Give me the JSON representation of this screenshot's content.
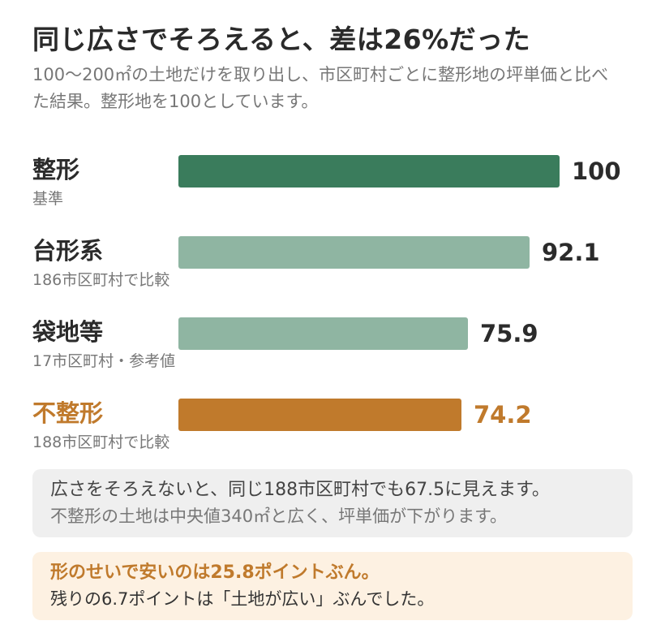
{
  "header": {
    "title": "同じ広さでそろえると、差は26%だった",
    "subtitle": "100〜200㎡の土地だけを取り出し、市区町村ごとに整形地の坪単価と比べた結果。整形地を100としています。"
  },
  "colors": {
    "reference": "#3a7c5c",
    "comparison": "#8fb5a2",
    "highlight": "#c07a2c",
    "text": "#2b2b2b",
    "muted": "#777777",
    "box_gray": "#efefef",
    "box_cream": "#fdf1e2"
  },
  "chart_data": {
    "type": "bar",
    "orientation": "horizontal",
    "categories": [
      "整形",
      "台形系",
      "袋地等",
      "不整形"
    ],
    "notes": [
      "基準",
      "186市区町村で比較",
      "17市区町村・参考値",
      "188市区町村で比較"
    ],
    "values": [
      100,
      92.1,
      75.9,
      74.2
    ],
    "value_labels": [
      "100",
      "92.1",
      "75.9",
      "74.2"
    ],
    "bar_colors": [
      "#3a7c5c",
      "#8fb5a2",
      "#8fb5a2",
      "#c07a2c"
    ],
    "label_colors": [
      "#2b2b2b",
      "#2b2b2b",
      "#2b2b2b",
      "#c07a2c"
    ],
    "xlim": [
      0,
      100
    ],
    "grid": false
  },
  "gray_box": {
    "line1": "広さをそろえないと、同じ188市区町村でも67.5に見えます。",
    "line2": "不整形の土地は中央値340㎡と広く、坪単価が下がります。"
  },
  "cream_box": {
    "line1": "形のせいで安いのは25.8ポイントぶん。",
    "line2": "残りの6.7ポイントは「土地が広い」ぶんでした。"
  }
}
